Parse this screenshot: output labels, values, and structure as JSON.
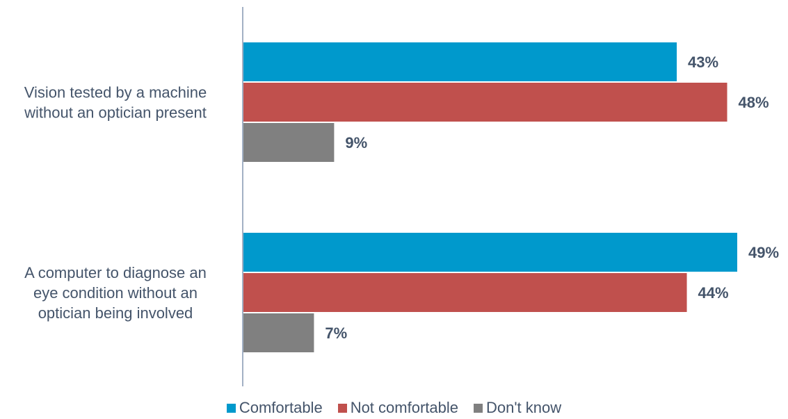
{
  "chart_data": {
    "type": "bar",
    "orientation": "horizontal",
    "categories": [
      [
        "Vision tested by a machine",
        "without an optician present"
      ],
      [
        "A computer to diagnose an",
        "eye condition without an",
        "optician being involved"
      ]
    ],
    "series": [
      {
        "name": "Comfortable",
        "values": [
          43,
          49
        ],
        "labels": [
          "43%",
          "49%"
        ],
        "color": "#0099cc"
      },
      {
        "name": "Not comfortable",
        "values": [
          48,
          44
        ],
        "labels": [
          "48%",
          "44%"
        ],
        "color": "#c0504d"
      },
      {
        "name": "Don't know",
        "values": [
          9,
          7
        ],
        "labels": [
          "9%",
          "7%"
        ],
        "color": "#808080"
      }
    ],
    "xlim": [
      0,
      49
    ],
    "grid": false,
    "legend_position": "bottom",
    "title": "",
    "xlabel": "",
    "ylabel": ""
  }
}
